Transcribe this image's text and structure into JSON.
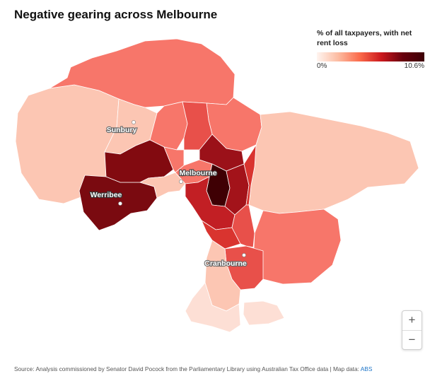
{
  "title": "Negative gearing across Melbourne",
  "legend": {
    "title": "% of all taxpayers, with net rent loss",
    "min_label": "0%",
    "max_label": "10.6%",
    "colors": [
      "#fff5f0",
      "#fcbba1",
      "#fb6a4a",
      "#cb181d",
      "#67000d",
      "#3d0006"
    ]
  },
  "places": [
    {
      "name": "Sunbury"
    },
    {
      "name": "Melbourne"
    },
    {
      "name": "Werribee"
    },
    {
      "name": "Cranbourne"
    }
  ],
  "zoom": {
    "in_label": "+",
    "out_label": "−"
  },
  "source": {
    "text": "Source: Analysis commissioned by Senator David Pocock from the Parliamentary Library using Australian Tax Office data | Map data: ",
    "link_text": "ABS"
  }
}
